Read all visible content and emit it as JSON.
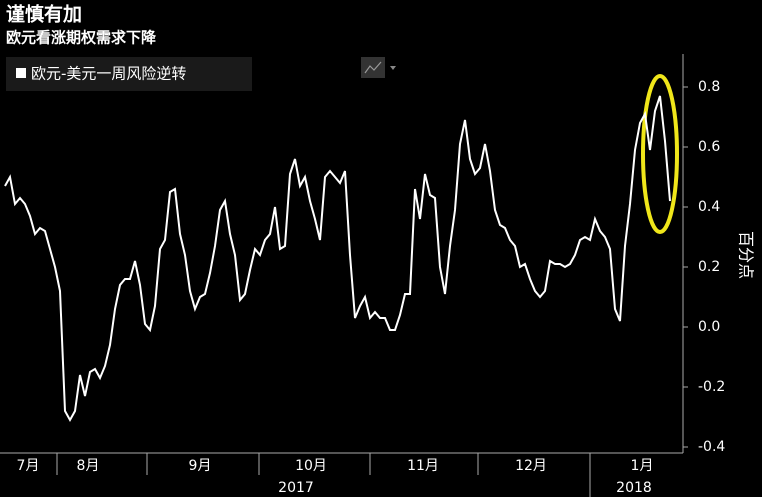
{
  "chart_data": {
    "type": "line",
    "title": "谨慎有加",
    "subtitle": "欧元看涨期权需求下降",
    "y_axis_label": "百分点",
    "series": [
      {
        "name": "欧元-美元一周风险逆转",
        "color": "#ffffff",
        "values": [
          0.47,
          0.5,
          0.41,
          0.43,
          0.41,
          0.37,
          0.31,
          0.33,
          0.32,
          0.26,
          0.2,
          0.12,
          -0.28,
          -0.31,
          -0.28,
          -0.16,
          -0.23,
          -0.15,
          -0.14,
          -0.17,
          -0.13,
          -0.06,
          0.06,
          0.14,
          0.16,
          0.16,
          0.22,
          0.14,
          0.01,
          -0.01,
          0.07,
          0.26,
          0.29,
          0.45,
          0.46,
          0.31,
          0.24,
          0.12,
          0.06,
          0.1,
          0.11,
          0.18,
          0.27,
          0.39,
          0.42,
          0.31,
          0.24,
          0.09,
          0.11,
          0.19,
          0.26,
          0.24,
          0.29,
          0.31,
          0.4,
          0.26,
          0.27,
          0.51,
          0.56,
          0.47,
          0.5,
          0.42,
          0.36,
          0.29,
          0.5,
          0.52,
          0.5,
          0.48,
          0.52,
          0.24,
          0.03,
          0.07,
          0.1,
          0.03,
          0.05,
          0.03,
          0.03,
          -0.01,
          -0.01,
          0.04,
          0.11,
          0.11,
          0.46,
          0.36,
          0.51,
          0.44,
          0.43,
          0.2,
          0.11,
          0.27,
          0.39,
          0.61,
          0.69,
          0.56,
          0.51,
          0.53,
          0.61,
          0.52,
          0.39,
          0.34,
          0.33,
          0.29,
          0.27,
          0.2,
          0.21,
          0.16,
          0.12,
          0.1,
          0.12,
          0.22,
          0.21,
          0.21,
          0.2,
          0.21,
          0.24,
          0.29,
          0.3,
          0.29,
          0.36,
          0.32,
          0.3,
          0.26,
          0.06,
          0.02,
          0.27,
          0.41,
          0.59,
          0.68,
          0.71,
          0.59,
          0.72,
          0.77,
          0.62,
          0.42
        ]
      }
    ],
    "month_labels": [
      "7月",
      "8月",
      "9月",
      "10月",
      "11月",
      "12月",
      "1月"
    ],
    "year_labels": [
      "2017",
      "2018"
    ],
    "ylim": [
      -0.42,
      0.91
    ],
    "yticks": [
      -0.4,
      -0.2,
      {
        "value": 0,
        "label": "0.0"
      },
      0.2,
      0.4,
      0.6,
      0.8
    ],
    "y_axis_side": "right"
  }
}
